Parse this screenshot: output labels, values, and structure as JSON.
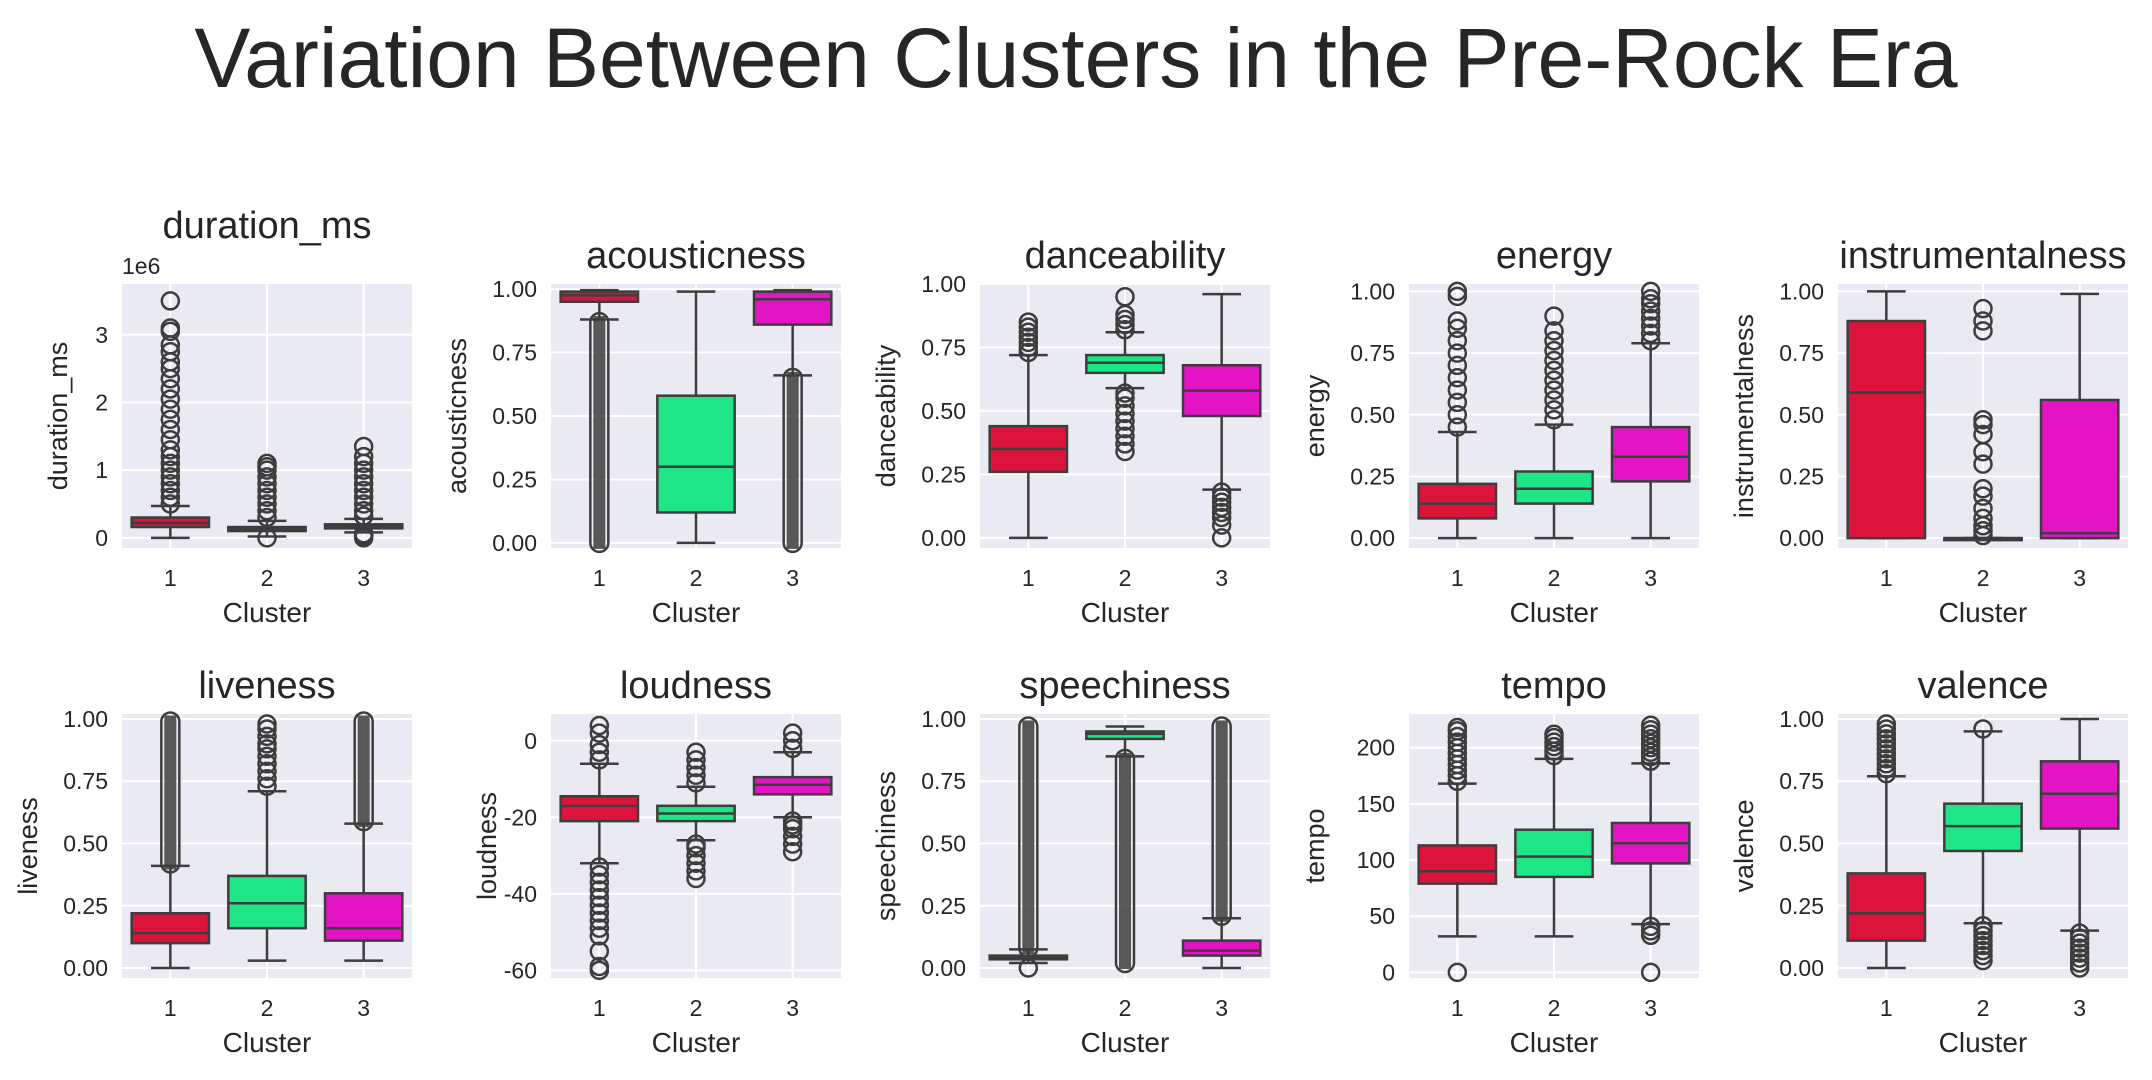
{
  "figure": {
    "title": "Variation Between Clusters in the Pre-Rock Era"
  },
  "palette": {
    "1": "#dc143c",
    "2": "#1ee687",
    "3": "#e314c3",
    "background": "#eaeaf2",
    "grid": "#ffffff",
    "line": "#3d3d3d"
  },
  "chart_data": [
    {
      "type": "box",
      "title": "duration_ms",
      "xlabel": "Cluster",
      "ylabel": "duration_ms",
      "exponent_label": "1e6",
      "categories": [
        "1",
        "2",
        "3"
      ],
      "ylim": [
        -0.15,
        3.75
      ],
      "yticks": [
        0,
        1,
        2,
        3
      ],
      "ytick_labels": [
        "0",
        "1",
        "2",
        "3"
      ],
      "boxes": [
        {
          "cluster": "1",
          "whislo": 0.0,
          "q1": 0.16,
          "median": 0.22,
          "q3": 0.3,
          "whishi": 0.47,
          "outliers": [
            0.5,
            0.6,
            0.7,
            0.8,
            0.9,
            1.0,
            1.1,
            1.2,
            1.3,
            1.45,
            1.6,
            1.75,
            1.9,
            2.05,
            2.2,
            2.35,
            2.5,
            2.6,
            2.75,
            2.85,
            3.05,
            3.1,
            3.5
          ]
        },
        {
          "cluster": "2",
          "whislo": 0.02,
          "q1": 0.1,
          "median": 0.13,
          "q3": 0.16,
          "whishi": 0.25,
          "outliers": [
            0.0,
            0.3,
            0.4,
            0.5,
            0.6,
            0.7,
            0.8,
            0.9,
            1.0,
            1.05,
            1.1
          ]
        },
        {
          "cluster": "3",
          "whislo": 0.08,
          "q1": 0.14,
          "median": 0.17,
          "q3": 0.2,
          "whishi": 0.28,
          "outliers": [
            0.0,
            0.03,
            0.06,
            0.32,
            0.4,
            0.5,
            0.6,
            0.7,
            0.8,
            0.9,
            1.0,
            1.1,
            1.2,
            1.35
          ]
        }
      ]
    },
    {
      "type": "box",
      "title": "acousticness",
      "xlabel": "Cluster",
      "ylabel": "acousticness",
      "categories": [
        "1",
        "2",
        "3"
      ],
      "ylim": [
        -0.02,
        1.02
      ],
      "yticks": [
        0,
        0.25,
        0.5,
        0.75,
        1
      ],
      "ytick_labels": [
        "0.00",
        "0.25",
        "0.50",
        "0.75",
        "1.00"
      ],
      "boxes": [
        {
          "cluster": "1",
          "whislo": 0.88,
          "q1": 0.95,
          "median": 0.975,
          "q3": 0.99,
          "whishi": 0.996,
          "outlier_band": [
            0.0,
            0.87
          ]
        },
        {
          "cluster": "2",
          "whislo": 0.0,
          "q1": 0.12,
          "median": 0.3,
          "q3": 0.58,
          "whishi": 0.99,
          "outliers": []
        },
        {
          "cluster": "3",
          "whislo": 0.66,
          "q1": 0.86,
          "median": 0.96,
          "q3": 0.99,
          "whishi": 0.996,
          "outlier_band": [
            0.0,
            0.65
          ]
        }
      ]
    },
    {
      "type": "box",
      "title": "danceability",
      "xlabel": "Cluster",
      "ylabel": "danceability",
      "categories": [
        "1",
        "2",
        "3"
      ],
      "ylim": [
        -0.04,
        1.0
      ],
      "yticks": [
        0,
        0.25,
        0.5,
        0.75,
        1
      ],
      "ytick_labels": [
        "0.00",
        "0.25",
        "0.50",
        "0.75",
        "1.00"
      ],
      "boxes": [
        {
          "cluster": "1",
          "whislo": 0.0,
          "q1": 0.26,
          "median": 0.35,
          "q3": 0.44,
          "whishi": 0.72,
          "outliers": [
            0.73,
            0.75,
            0.77,
            0.79,
            0.81,
            0.83,
            0.85
          ]
        },
        {
          "cluster": "2",
          "whislo": 0.59,
          "q1": 0.65,
          "median": 0.69,
          "q3": 0.72,
          "whishi": 0.81,
          "outliers": [
            0.34,
            0.37,
            0.4,
            0.43,
            0.46,
            0.49,
            0.52,
            0.55,
            0.57,
            0.82,
            0.84,
            0.86,
            0.88,
            0.95
          ]
        },
        {
          "cluster": "3",
          "whislo": 0.19,
          "q1": 0.48,
          "median": 0.58,
          "q3": 0.68,
          "whishi": 0.96,
          "outliers": [
            0.0,
            0.05,
            0.08,
            0.1,
            0.12,
            0.14,
            0.16,
            0.18
          ]
        }
      ]
    },
    {
      "type": "box",
      "title": "energy",
      "xlabel": "Cluster",
      "ylabel": "energy",
      "categories": [
        "1",
        "2",
        "3"
      ],
      "ylim": [
        -0.04,
        1.03
      ],
      "yticks": [
        0,
        0.25,
        0.5,
        0.75,
        1
      ],
      "ytick_labels": [
        "0.00",
        "0.25",
        "0.50",
        "0.75",
        "1.00"
      ],
      "boxes": [
        {
          "cluster": "1",
          "whislo": 0.0,
          "q1": 0.08,
          "median": 0.14,
          "q3": 0.22,
          "whishi": 0.43,
          "outliers": [
            0.45,
            0.5,
            0.55,
            0.6,
            0.65,
            0.7,
            0.75,
            0.8,
            0.85,
            0.88,
            0.98,
            1.0
          ]
        },
        {
          "cluster": "2",
          "whislo": 0.0,
          "q1": 0.14,
          "median": 0.2,
          "q3": 0.27,
          "whishi": 0.46,
          "outliers": [
            0.48,
            0.52,
            0.56,
            0.6,
            0.64,
            0.68,
            0.72,
            0.76,
            0.8,
            0.84,
            0.9
          ]
        },
        {
          "cluster": "3",
          "whislo": 0.0,
          "q1": 0.23,
          "median": 0.33,
          "q3": 0.45,
          "whishi": 0.79,
          "outliers": [
            0.8,
            0.83,
            0.86,
            0.89,
            0.92,
            0.95,
            0.97,
            1.0
          ]
        }
      ]
    },
    {
      "type": "box",
      "title": "instrumentalness",
      "xlabel": "Cluster",
      "ylabel": "instrumentalness",
      "categories": [
        "1",
        "2",
        "3"
      ],
      "ylim": [
        -0.04,
        1.03
      ],
      "yticks": [
        0,
        0.25,
        0.5,
        0.75,
        1
      ],
      "ytick_labels": [
        "0.00",
        "0.25",
        "0.50",
        "0.75",
        "1.00"
      ],
      "boxes": [
        {
          "cluster": "1",
          "whislo": 0.0,
          "q1": 0.0,
          "median": 0.59,
          "q3": 0.88,
          "whishi": 1.0,
          "outliers": []
        },
        {
          "cluster": "2",
          "whislo": 0.0,
          "q1": 0.0,
          "median": 0.0,
          "q3": 0.0,
          "whishi": 0.0,
          "outliers": [
            0.01,
            0.03,
            0.05,
            0.08,
            0.12,
            0.17,
            0.2,
            0.3,
            0.35,
            0.42,
            0.46,
            0.48,
            0.84,
            0.88,
            0.93
          ]
        },
        {
          "cluster": "3",
          "whislo": 0.0,
          "q1": 0.0,
          "median": 0.02,
          "q3": 0.56,
          "whishi": 0.99,
          "outliers": []
        }
      ]
    },
    {
      "type": "box",
      "title": "liveness",
      "xlabel": "Cluster",
      "ylabel": "liveness",
      "categories": [
        "1",
        "2",
        "3"
      ],
      "ylim": [
        -0.04,
        1.02
      ],
      "yticks": [
        0,
        0.25,
        0.5,
        0.75,
        1
      ],
      "ytick_labels": [
        "0.00",
        "0.25",
        "0.50",
        "0.75",
        "1.00"
      ],
      "boxes": [
        {
          "cluster": "1",
          "whislo": 0.0,
          "q1": 0.1,
          "median": 0.14,
          "q3": 0.22,
          "whishi": 0.41,
          "outlier_band": [
            0.42,
            0.99
          ]
        },
        {
          "cluster": "2",
          "whislo": 0.03,
          "q1": 0.16,
          "median": 0.26,
          "q3": 0.37,
          "whishi": 0.71,
          "outliers": [
            0.73,
            0.76,
            0.79,
            0.82,
            0.85,
            0.88,
            0.9,
            0.93,
            0.96,
            0.98
          ]
        },
        {
          "cluster": "3",
          "whislo": 0.03,
          "q1": 0.11,
          "median": 0.16,
          "q3": 0.3,
          "whishi": 0.58,
          "outlier_band": [
            0.59,
            0.99
          ]
        }
      ]
    },
    {
      "type": "box",
      "title": "loudness",
      "xlabel": "Cluster",
      "ylabel": "loudness",
      "categories": [
        "1",
        "2",
        "3"
      ],
      "ylim": [
        -62,
        7
      ],
      "yticks": [
        -60,
        -40,
        -20,
        0
      ],
      "ytick_labels": [
        "-60",
        "-40",
        "-20",
        "0"
      ],
      "boxes": [
        {
          "cluster": "1",
          "whislo": -32,
          "q1": -21,
          "median": -17,
          "q3": -14.5,
          "whishi": -6,
          "outliers": [
            -60,
            -59,
            -55,
            -51,
            -49,
            -47,
            -45,
            -43,
            -41,
            -39,
            -37,
            -35,
            -33,
            -5,
            -3,
            -1,
            2,
            4
          ]
        },
        {
          "cluster": "2",
          "whislo": -26,
          "q1": -21,
          "median": -19,
          "q3": -17,
          "whishi": -12,
          "outliers": [
            -36,
            -34,
            -32,
            -30,
            -28,
            -27,
            -11,
            -9,
            -7,
            -5,
            -3
          ]
        },
        {
          "cluster": "3",
          "whislo": -20,
          "q1": -14,
          "median": -11.5,
          "q3": -9.5,
          "whishi": -3,
          "outliers": [
            -29,
            -27,
            -25,
            -23,
            -22,
            -21,
            -2,
            0,
            2
          ]
        }
      ]
    },
    {
      "type": "box",
      "title": "speechiness",
      "xlabel": "Cluster",
      "ylabel": "speechiness",
      "categories": [
        "1",
        "2",
        "3"
      ],
      "ylim": [
        -0.04,
        1.02
      ],
      "yticks": [
        0,
        0.25,
        0.5,
        0.75,
        1
      ],
      "ytick_labels": [
        "0.00",
        "0.25",
        "0.50",
        "0.75",
        "1.00"
      ],
      "boxes": [
        {
          "cluster": "1",
          "whislo": 0.02,
          "q1": 0.035,
          "median": 0.043,
          "q3": 0.05,
          "whishi": 0.075,
          "outlier_band": [
            0.08,
            0.97
          ],
          "outliers": [
            0.0
          ]
        },
        {
          "cluster": "2",
          "whislo": 0.85,
          "q1": 0.92,
          "median": 0.94,
          "q3": 0.95,
          "whishi": 0.97,
          "outlier_band": [
            0.02,
            0.84
          ]
        },
        {
          "cluster": "3",
          "whislo": 0.0,
          "q1": 0.05,
          "median": 0.07,
          "q3": 0.11,
          "whishi": 0.2,
          "outlier_band": [
            0.21,
            0.97
          ]
        }
      ]
    },
    {
      "type": "box",
      "title": "tempo",
      "xlabel": "Cluster",
      "ylabel": "tempo",
      "categories": [
        "1",
        "2",
        "3"
      ],
      "ylim": [
        -5,
        230
      ],
      "yticks": [
        0,
        50,
        100,
        150,
        200
      ],
      "ytick_labels": [
        "0",
        "50",
        "100",
        "150",
        "200"
      ],
      "boxes": [
        {
          "cluster": "1",
          "whislo": 32,
          "q1": 79,
          "median": 90,
          "q3": 113,
          "whishi": 168,
          "outliers": [
            0,
            170,
            175,
            180,
            185,
            190,
            195,
            200,
            205,
            210,
            215,
            218
          ]
        },
        {
          "cluster": "2",
          "whislo": 32,
          "q1": 85,
          "median": 103,
          "q3": 127,
          "whishi": 190,
          "outliers": [
            193,
            197,
            201,
            205,
            209,
            212
          ]
        },
        {
          "cluster": "3",
          "whislo": 43,
          "q1": 97,
          "median": 115,
          "q3": 133,
          "whishi": 186,
          "outliers": [
            0,
            33,
            37,
            41,
            188,
            192,
            196,
            200,
            204,
            208,
            212,
            216,
            220
          ]
        }
      ]
    },
    {
      "type": "box",
      "title": "valence",
      "xlabel": "Cluster",
      "ylabel": "valence",
      "categories": [
        "1",
        "2",
        "3"
      ],
      "ylim": [
        -0.04,
        1.02
      ],
      "yticks": [
        0,
        0.25,
        0.5,
        0.75,
        1
      ],
      "ytick_labels": [
        "0.00",
        "0.25",
        "0.50",
        "0.75",
        "1.00"
      ],
      "boxes": [
        {
          "cluster": "1",
          "whislo": 0.0,
          "q1": 0.11,
          "median": 0.22,
          "q3": 0.38,
          "whishi": 0.77,
          "outliers": [
            0.78,
            0.8,
            0.82,
            0.84,
            0.86,
            0.88,
            0.9,
            0.92,
            0.94,
            0.96,
            0.98
          ]
        },
        {
          "cluster": "2",
          "whislo": 0.18,
          "q1": 0.47,
          "median": 0.57,
          "q3": 0.66,
          "whishi": 0.95,
          "outliers": [
            0.03,
            0.05,
            0.07,
            0.09,
            0.11,
            0.13,
            0.15,
            0.17,
            0.96
          ]
        },
        {
          "cluster": "3",
          "whislo": 0.15,
          "q1": 0.56,
          "median": 0.7,
          "q3": 0.83,
          "whishi": 1.0,
          "outliers": [
            0.0,
            0.02,
            0.04,
            0.06,
            0.08,
            0.1,
            0.12,
            0.14
          ]
        }
      ]
    }
  ]
}
